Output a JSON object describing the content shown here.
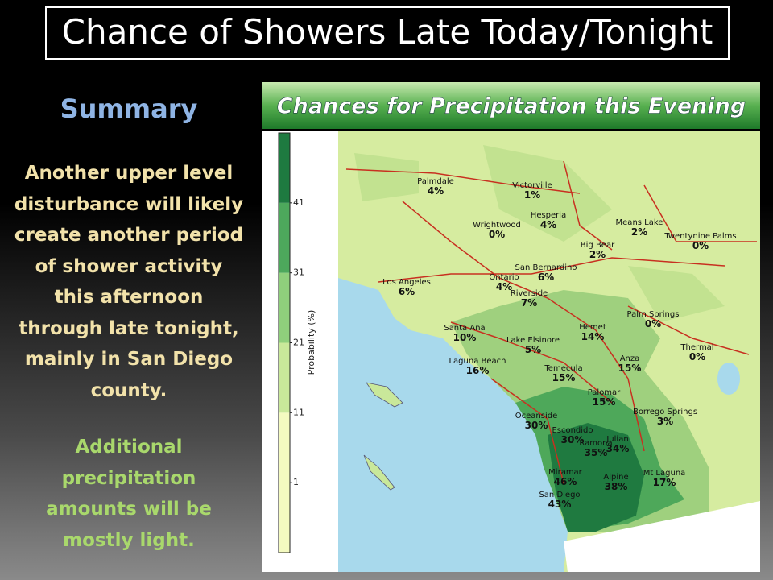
{
  "title": "Chance of Showers Late Today/Tonight",
  "summary": {
    "heading": "Summary",
    "body": [
      "Another upper level",
      "disturbance will likely",
      "create another period",
      "of shower activity",
      "this afternoon",
      "through late tonight,",
      "mainly in San Diego",
      "county."
    ],
    "note": [
      "Additional",
      "precipitation",
      "amounts will be",
      "mostly light."
    ]
  },
  "map": {
    "title": "Chances for Precipitation this Evening",
    "colorbar": {
      "label": "Probability (%)",
      "lim": [
        -9,
        51
      ],
      "ticks": [
        1,
        11,
        21,
        31,
        41
      ],
      "colors": [
        "#f4fac0",
        "#c9e89a",
        "#8fcf7c",
        "#4da85c",
        "#1e7a40"
      ]
    },
    "places": [
      {
        "name": "Palmdale",
        "chance": "4%"
      },
      {
        "name": "Victorville",
        "chance": "1%"
      },
      {
        "name": "Hesperia",
        "chance": "4%"
      },
      {
        "name": "Wrightwood",
        "chance": "0%"
      },
      {
        "name": "Means Lake",
        "chance": "2%"
      },
      {
        "name": "Twentynine Palms",
        "chance": "0%"
      },
      {
        "name": "Big Bear",
        "chance": "2%"
      },
      {
        "name": "San Bernardino",
        "chance": "6%"
      },
      {
        "name": "Ontario",
        "chance": "4%"
      },
      {
        "name": "Riverside",
        "chance": "7%"
      },
      {
        "name": "Los Angeles",
        "chance": "6%"
      },
      {
        "name": "Palm Springs",
        "chance": "0%"
      },
      {
        "name": "Santa Ana",
        "chance": "10%"
      },
      {
        "name": "Lake Elsinore",
        "chance": "5%"
      },
      {
        "name": "Hemet",
        "chance": "14%"
      },
      {
        "name": "Thermal",
        "chance": "0%"
      },
      {
        "name": "Laguna Beach",
        "chance": "16%"
      },
      {
        "name": "Temecula",
        "chance": "15%"
      },
      {
        "name": "Anza",
        "chance": "15%"
      },
      {
        "name": "Palomar",
        "chance": "15%"
      },
      {
        "name": "Oceanside",
        "chance": "30%"
      },
      {
        "name": "Borrego Springs",
        "chance": "3%"
      },
      {
        "name": "Escondido",
        "chance": "30%"
      },
      {
        "name": "Ramona",
        "chance": "35%"
      },
      {
        "name": "Julian",
        "chance": "34%"
      },
      {
        "name": "Miramar",
        "chance": "46%"
      },
      {
        "name": "Alpine",
        "chance": "38%"
      },
      {
        "name": "Mt Laguna",
        "chance": "17%"
      },
      {
        "name": "San Diego",
        "chance": "43%"
      }
    ]
  }
}
